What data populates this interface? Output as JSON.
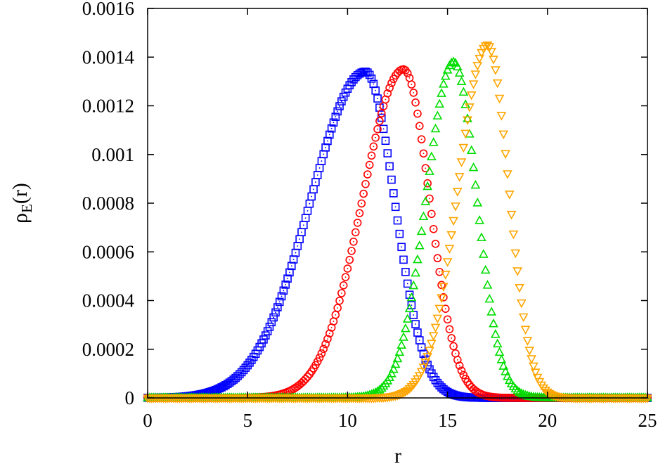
{
  "chart_data": {
    "type": "scatter",
    "xlabel": "r",
    "ylabel": {
      "main": "ρ",
      "sub": "E",
      "tail": "(r)"
    },
    "xlim": [
      0,
      25
    ],
    "ylim": [
      0,
      0.0016
    ],
    "xticks": [
      0,
      5,
      10,
      15,
      20,
      25
    ],
    "xtick_labels": [
      "0",
      "5",
      "10",
      "15",
      "20",
      "25"
    ],
    "yticks": [
      0,
      0.0002,
      0.0004,
      0.0006,
      0.0008,
      0.001,
      0.0012,
      0.0014,
      0.0016
    ],
    "ytick_labels": [
      "0",
      "0.0002",
      "0.0004",
      "0.0006",
      "0.0008",
      "0.001",
      "0.0012",
      "0.0014",
      "0.0016"
    ],
    "grid": false,
    "legend": "none",
    "x_step": 0.1,
    "series": [
      {
        "color": "#0000ff",
        "marker": "square",
        "x_start": 0,
        "x_end": 25,
        "mu": 10.9,
        "sigma_left": 2.75,
        "sigma_right": 1.45,
        "peak": 0.00134
      },
      {
        "color": "#ff0000",
        "marker": "circle",
        "x_start": 0,
        "x_end": 25,
        "mu": 12.8,
        "sigma_left": 2.05,
        "sigma_right": 1.3,
        "peak": 0.00135
      },
      {
        "color": "#00dd00",
        "marker": "triangle-up",
        "x_start": 0,
        "x_end": 25,
        "mu": 15.3,
        "sigma_left": 1.35,
        "sigma_right": 1.15,
        "peak": 0.00138
      },
      {
        "color": "#ffa500",
        "marker": "triangle-down",
        "x_start": 0,
        "x_end": 25,
        "mu": 17.0,
        "sigma_left": 1.45,
        "sigma_right": 1.05,
        "peak": 0.00145
      }
    ]
  }
}
